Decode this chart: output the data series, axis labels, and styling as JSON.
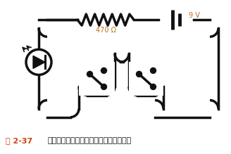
{
  "bg_color": "#aac8e8",
  "circuit_color": "#111111",
  "white_box_color": "#ffffff",
  "caption_prefix": "图 2-37",
  "caption_prefix_color": "#d04010",
  "caption_text": "此处用电路图重新绘制有两个开关的电路",
  "caption_color": "#111111",
  "resistor_label": "470 Ω",
  "battery_label": "9 V",
  "fig_width": 3.28,
  "fig_height": 2.19,
  "dpi": 100
}
